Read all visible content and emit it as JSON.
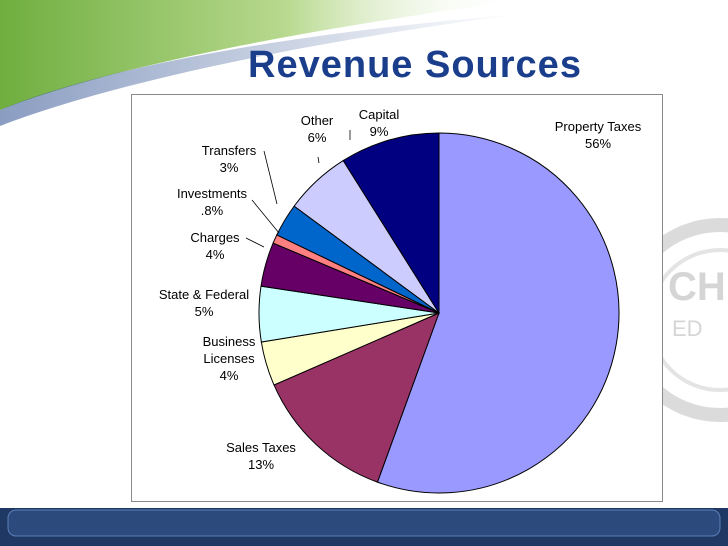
{
  "slide": {
    "title": "Revenue Sources",
    "colors": {
      "title": "#1a3e8c",
      "accent_green": "#7ab648",
      "footer_band": "#1f3864"
    }
  },
  "chart_data": {
    "type": "pie",
    "title": "",
    "start_angle_deg": 0,
    "direction": "clockwise",
    "slices": [
      {
        "label": "Property Taxes",
        "value": 56,
        "value_label": "56%",
        "color": "#9999ff"
      },
      {
        "label": "Sales Taxes",
        "value": 13,
        "value_label": "13%",
        "color": "#993366"
      },
      {
        "label": "Business Licenses",
        "value": 4,
        "value_label": "4%",
        "color": "#ffffcc"
      },
      {
        "label": "State & Federal",
        "value": 5,
        "value_label": "5%",
        "color": "#ccffff"
      },
      {
        "label": "Charges",
        "value": 4,
        "value_label": "4%",
        "color": "#660066"
      },
      {
        "label": "Investments",
        "value": 0.8,
        "value_label": ".8%",
        "color": "#ff8080"
      },
      {
        "label": "Transfers",
        "value": 3,
        "value_label": "3%",
        "color": "#0066cc"
      },
      {
        "label": "Other",
        "value": 6,
        "value_label": "6%",
        "color": "#ccccff"
      },
      {
        "label": "Capital",
        "value": 9,
        "value_label": "9%",
        "color": "#000080"
      }
    ]
  }
}
